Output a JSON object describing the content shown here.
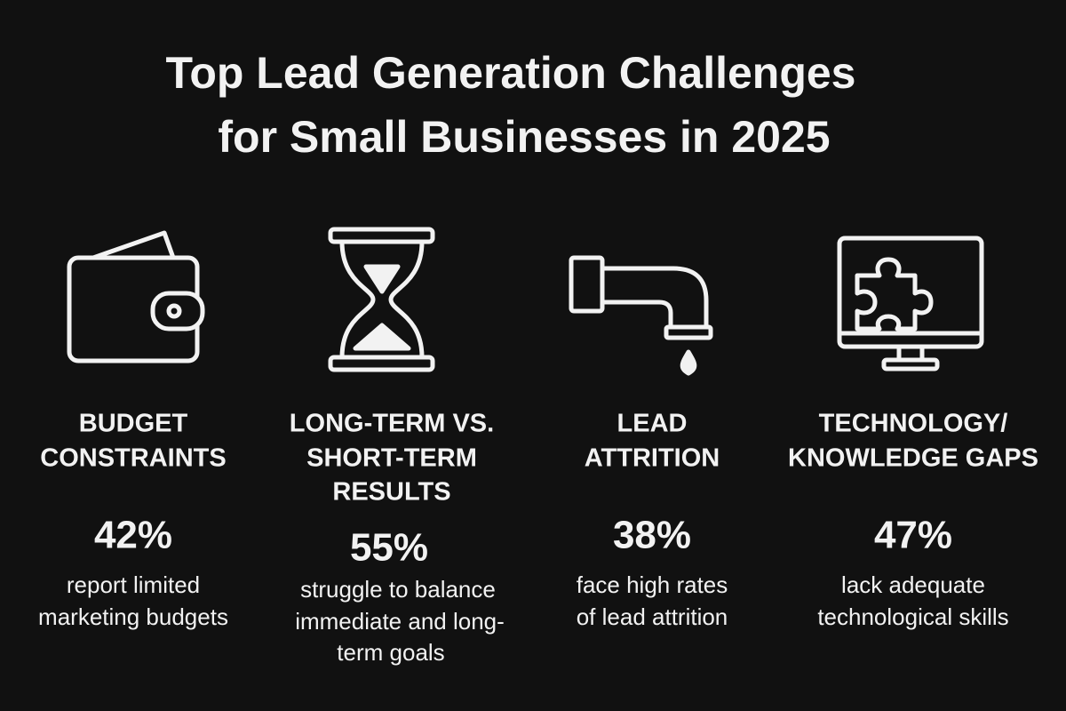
{
  "title": [
    "Top Lead Generation Challenges",
    "for Small Businesses in 2025"
  ],
  "items": [
    {
      "heading": [
        "BUDGET",
        "CONSTRAINTS"
      ],
      "stat": "42%",
      "description": [
        "report limited",
        "marketing budgets"
      ]
    },
    {
      "heading": [
        "LONG-TERM VS.",
        "SHORT-TERM",
        "RESULTS"
      ],
      "stat": "55%",
      "description": [
        "struggle to balance",
        "immediate and long-",
        "term goals"
      ]
    },
    {
      "heading": [
        "LEAD",
        "ATTRITION"
      ],
      "stat": "38%",
      "description": [
        "face high rates",
        "of lead attrition"
      ]
    },
    {
      "heading": [
        "TECHNOLOGY/",
        "KNOWLEDGE GAPS"
      ],
      "stat": "47%",
      "description": [
        "lack adequate",
        "technological skills"
      ]
    }
  ]
}
